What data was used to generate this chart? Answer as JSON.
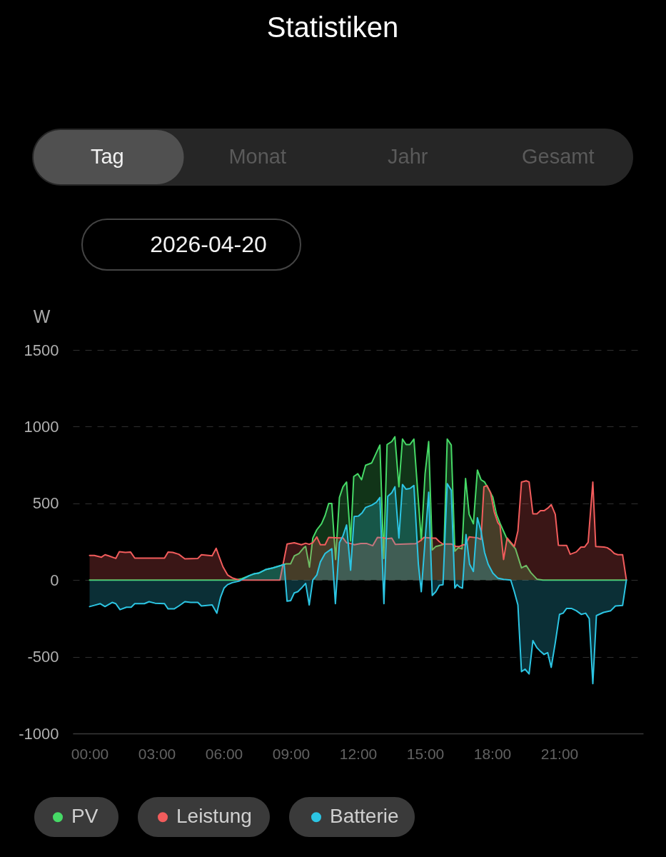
{
  "chart_data": {
    "type": "area",
    "title": "Statistiken",
    "subtitle": "2026-04-20",
    "ylabel": "W",
    "annotations": [
      "Tag",
      "Monat",
      "Jahr",
      "Gesamt"
    ],
    "xlim": [
      -0.75,
      24.75
    ],
    "xticks": [
      {
        "value": 0,
        "label": "00:00"
      },
      {
        "value": 3,
        "label": "03:00"
      },
      {
        "value": 6,
        "label": "06:00"
      },
      {
        "value": 9,
        "label": "09:00"
      },
      {
        "value": 12,
        "label": "12:00"
      },
      {
        "value": 15,
        "label": "15:00"
      },
      {
        "value": 18,
        "label": "18:00"
      },
      {
        "value": 21,
        "label": "21:00"
      }
    ],
    "ylim": [
      -1000,
      1500
    ],
    "yticks": [
      -1000,
      -500,
      0,
      500,
      1000,
      1500
    ],
    "grid": "y",
    "legend": "bottom left",
    "series": [
      {
        "name": "PV",
        "color": "#46d966",
        "x": [
          0,
          6.49,
          6.81,
          7.13,
          7.34,
          7.55,
          7.87,
          8.19,
          8.56,
          8.78,
          8.99,
          9.15,
          9.36,
          9.58,
          9.66,
          9.83,
          9.98,
          10.16,
          10.37,
          10.53,
          10.69,
          10.83,
          11.0,
          11.17,
          11.33,
          11.49,
          11.67,
          11.81,
          11.99,
          12.16,
          12.34,
          12.61,
          12.98,
          13.15,
          13.3,
          13.51,
          13.65,
          13.83,
          13.99,
          14.15,
          14.32,
          14.5,
          14.83,
          15.0,
          15.16,
          15.32,
          15.48,
          15.69,
          15.85,
          15.99,
          16.17,
          16.33,
          16.49,
          16.65,
          16.81,
          16.97,
          17.16,
          17.34,
          17.5,
          17.66,
          17.87,
          18.03,
          18.19,
          18.35,
          18.67,
          19.04,
          19.31,
          19.52,
          19.73,
          20.0,
          20.27,
          24
        ],
        "values": [
          0,
          0,
          9,
          28,
          40,
          45,
          68,
          79,
          95,
          106,
          106,
          157,
          173,
          211,
          219,
          84,
          274,
          328,
          367,
          421,
          499,
          499,
          134,
          538,
          608,
          639,
          255,
          675,
          693,
          654,
          748,
          763,
          880,
          141,
          883,
          903,
          934,
          608,
          919,
          883,
          883,
          919,
          258,
          693,
          903,
          196,
          219,
          227,
          235,
          919,
          880,
          188,
          211,
          203,
          662,
          429,
          367,
          717,
          654,
          639,
          585,
          540,
          430,
          370,
          266,
          204,
          79,
          95,
          48,
          6,
          0,
          0
        ]
      },
      {
        "name": "Leistung",
        "color": "#f25c5c",
        "x": [
          0,
          0.21,
          0.53,
          0.69,
          0.85,
          1.17,
          1.33,
          1.6,
          1.83,
          2.02,
          3.35,
          3.51,
          3.72,
          3.99,
          4.26,
          4.84,
          5.0,
          5.48,
          5.66,
          5.8,
          5.96,
          6.17,
          6.38,
          6.7,
          8.51,
          8.83,
          9.15,
          9.47,
          9.66,
          9.82,
          9.98,
          10.16,
          10.32,
          10.53,
          10.69,
          11.17,
          11.33,
          11.49,
          11.65,
          11.84,
          12.13,
          12.4,
          12.66,
          12.87,
          13.14,
          13.3,
          13.51,
          13.67,
          14.57,
          14.79,
          14.95,
          15.32,
          15.48,
          15.64,
          15.8,
          16.17,
          16.38,
          16.54,
          16.7,
          16.81,
          16.97,
          17.34,
          17.5,
          17.63,
          17.77,
          17.93,
          18.09,
          18.25,
          18.35,
          18.51,
          18.67,
          18.99,
          19.15,
          19.31,
          19.52,
          19.65,
          19.82,
          20.0,
          20.16,
          20.32,
          20.48,
          20.64,
          20.82,
          20.96,
          21.22,
          21.33,
          21.49,
          21.76,
          21.97,
          22.13,
          22.29,
          22.5,
          22.63,
          23.0,
          23.14,
          23.3,
          23.46,
          23.62,
          23.83,
          24
        ],
        "values": [
          160,
          160,
          149,
          165,
          158,
          141,
          185,
          180,
          183,
          143,
          143,
          183,
          180,
          168,
          138,
          141,
          165,
          158,
          207,
          149,
          87,
          33,
          14,
          0,
          0,
          235,
          243,
          230,
          240,
          233,
          243,
          281,
          230,
          230,
          278,
          275,
          275,
          243,
          239,
          230,
          238,
          238,
          224,
          278,
          276,
          270,
          273,
          232,
          237,
          256,
          278,
          273,
          273,
          250,
          235,
          235,
          219,
          219,
          230,
          230,
          281,
          275,
          265,
          608,
          616,
          569,
          445,
          375,
          355,
          134,
          274,
          219,
          320,
          639,
          647,
          639,
          432,
          432,
          452,
          452,
          468,
          491,
          429,
          227,
          225,
          225,
          168,
          183,
          215,
          215,
          246,
          639,
          219,
          215,
          211,
          196,
          173,
          165,
          165,
          0
        ]
      },
      {
        "name": "Batterie",
        "color": "#2cc5e3",
        "x": [
          0,
          0.21,
          0.48,
          0.69,
          1.01,
          1.17,
          1.36,
          1.65,
          1.86,
          2.02,
          2.45,
          2.66,
          2.93,
          3.35,
          3.51,
          3.78,
          3.99,
          4.26,
          4.52,
          4.84,
          5.0,
          5.48,
          5.69,
          5.85,
          6.01,
          6.17,
          6.38,
          6.7,
          7.13,
          7.34,
          7.55,
          7.87,
          8.19,
          8.56,
          8.7,
          8.83,
          8.99,
          9.15,
          9.31,
          9.47,
          9.66,
          9.82,
          9.98,
          10.16,
          10.32,
          10.53,
          10.83,
          10.99,
          11.17,
          11.33,
          11.49,
          11.67,
          11.83,
          12.02,
          12.18,
          12.34,
          12.61,
          12.82,
          12.98,
          13.16,
          13.33,
          13.51,
          13.65,
          13.83,
          13.99,
          14.15,
          14.32,
          14.5,
          14.7,
          14.83,
          15.16,
          15.32,
          15.48,
          15.64,
          15.8,
          15.99,
          16.17,
          16.33,
          16.43,
          16.54,
          16.67,
          16.83,
          16.99,
          17.16,
          17.34,
          17.5,
          17.66,
          17.82,
          18.03,
          18.25,
          18.51,
          18.83,
          18.99,
          19.15,
          19.31,
          19.47,
          19.65,
          19.82,
          20.0,
          20.16,
          20.32,
          20.48,
          20.64,
          20.82,
          21.01,
          21.17,
          21.33,
          21.54,
          21.76,
          21.99,
          22.18,
          22.34,
          22.5,
          22.66,
          22.98,
          23.3,
          23.51,
          23.83,
          24
        ],
        "values": [
          -173,
          -165,
          -154,
          -173,
          -146,
          -154,
          -193,
          -177,
          -177,
          -154,
          -154,
          -141,
          -151,
          -154,
          -188,
          -188,
          -169,
          -141,
          -146,
          -146,
          -169,
          -162,
          -216,
          -115,
          -53,
          -30,
          -17,
          -6,
          28,
          40,
          45,
          68,
          79,
          95,
          103,
          -138,
          -134,
          -84,
          -76,
          -53,
          -22,
          -162,
          0,
          33,
          118,
          173,
          204,
          -154,
          243,
          289,
          359,
          64,
          414,
          417,
          437,
          473,
          488,
          507,
          538,
          -154,
          546,
          569,
          608,
          274,
          623,
          592,
          597,
          616,
          103,
          -76,
          572,
          -100,
          -76,
          -34,
          -30,
          628,
          585,
          -53,
          -30,
          -45,
          -53,
          297,
          103,
          56,
          406,
          320,
          180,
          103,
          45,
          13,
          4,
          0,
          -76,
          -162,
          -597,
          -581,
          -612,
          -395,
          -441,
          -465,
          -485,
          -473,
          -569,
          -410,
          -224,
          -216,
          -185,
          -185,
          -200,
          -224,
          -216,
          -252,
          -675,
          -232,
          -211,
          -200,
          -169,
          -166,
          0
        ]
      }
    ]
  }
}
